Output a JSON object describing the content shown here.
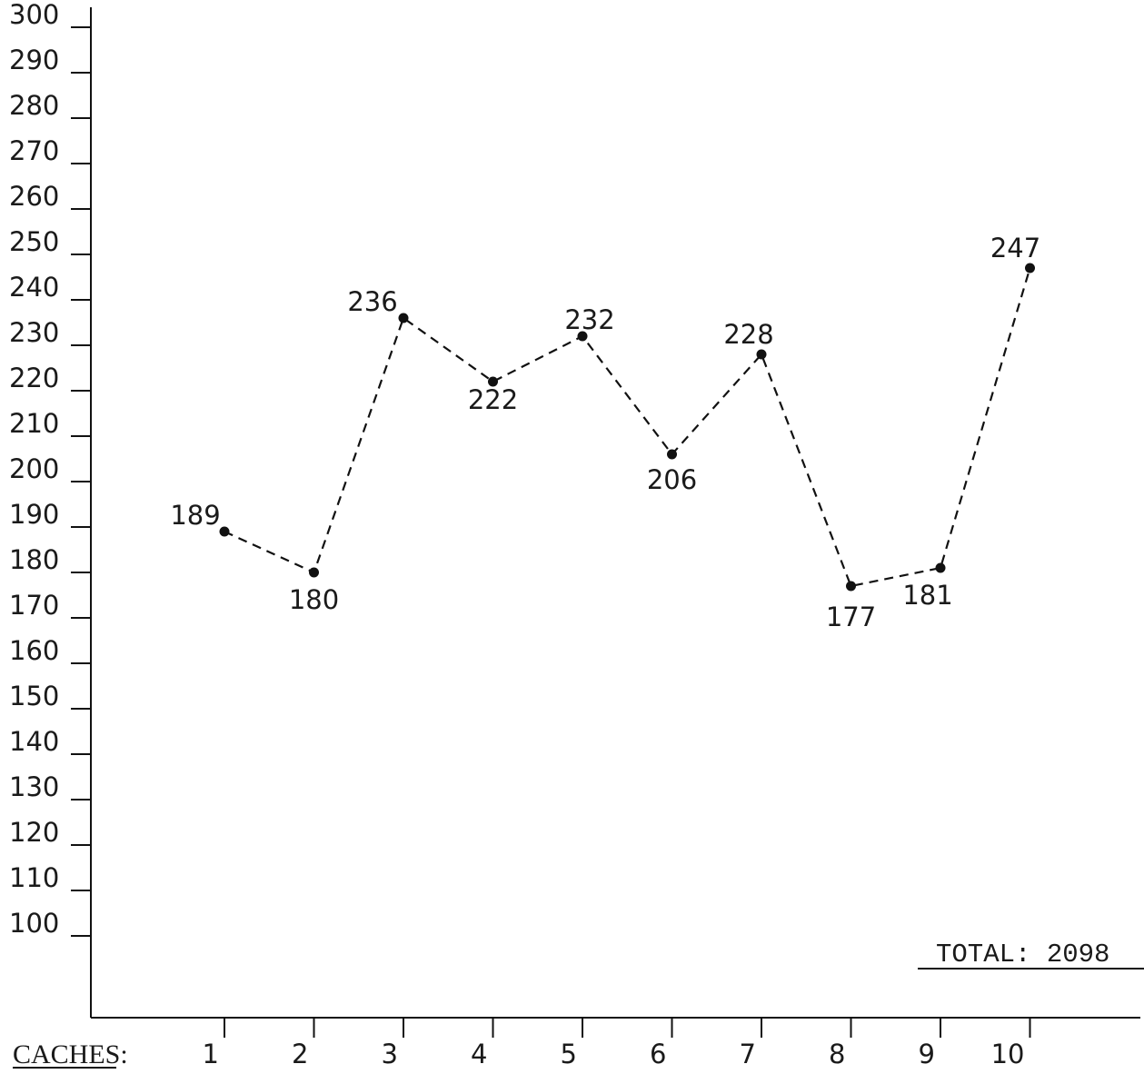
{
  "chart_data": {
    "type": "line",
    "x_axis_label": "CACHES:",
    "categories": [
      "1",
      "2",
      "3",
      "4",
      "5",
      "6",
      "7",
      "8",
      "9",
      "10"
    ],
    "values": [
      189,
      180,
      236,
      222,
      232,
      206,
      228,
      177,
      181,
      247
    ],
    "data_labels": [
      "189",
      "180",
      "236",
      "222",
      "232",
      "206",
      "228",
      "177",
      "181",
      "247"
    ],
    "y_ticks": [
      "300",
      "290",
      "280",
      "270",
      "260",
      "250",
      "240",
      "230",
      "220",
      "210",
      "200",
      "190",
      "180",
      "170",
      "160",
      "150",
      "140",
      "130",
      "120",
      "110",
      "100"
    ],
    "ylim": [
      100,
      300
    ],
    "line_style": "dashed",
    "grid": false,
    "total_text": "TOTAL: 2098"
  }
}
